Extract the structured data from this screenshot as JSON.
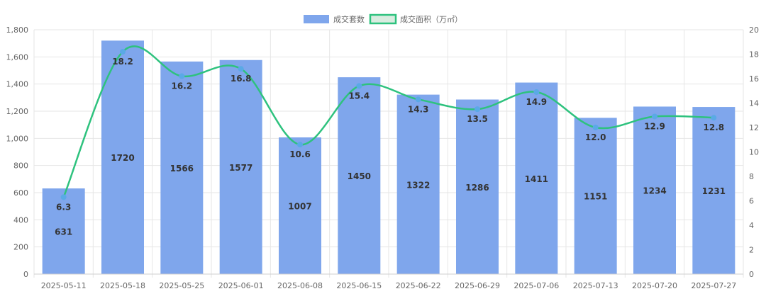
{
  "chart_data": {
    "type": "bar",
    "categories": [
      "2025-05-11",
      "2025-05-18",
      "2025-05-25",
      "2025-06-01",
      "2025-06-08",
      "2025-06-15",
      "2025-06-22",
      "2025-06-29",
      "2025-07-06",
      "2025-07-13",
      "2025-07-20",
      "2025-07-27"
    ],
    "series": [
      {
        "name": "成交套数",
        "type": "bar",
        "axis": "left",
        "values": [
          631,
          1720,
          1566,
          1577,
          1007,
          1450,
          1322,
          1286,
          1411,
          1151,
          1234,
          1231
        ],
        "color": "#7fa6ec"
      },
      {
        "name": "成交面积（万㎡）",
        "type": "line",
        "axis": "right",
        "values": [
          6.3,
          18.2,
          16.2,
          16.8,
          10.6,
          15.4,
          14.3,
          13.5,
          14.9,
          12.0,
          12.9,
          12.8
        ],
        "value_labels": [
          "6.3",
          "18.2",
          "16.2",
          "16.8",
          "10.6",
          "15.4",
          "14.3",
          "13.5",
          "14.9",
          "12.0",
          "12.9",
          "12.8"
        ],
        "color": "#2ec27e",
        "point_color": "#5aa9e6"
      }
    ],
    "y_left": {
      "min": 0,
      "max": 1800,
      "step": 200,
      "tick_labels": [
        "0",
        "200",
        "400",
        "600",
        "800",
        "1,000",
        "1,200",
        "1,400",
        "1,600",
        "1,800"
      ]
    },
    "y_right": {
      "min": 0,
      "max": 20,
      "step": 2,
      "tick_labels": [
        "0",
        "2",
        "4",
        "6",
        "8",
        "10",
        "12",
        "14",
        "16",
        "18",
        "20"
      ]
    },
    "legend": {
      "placement": "top-center",
      "bar_swatch_color": "#7fa6ec",
      "line_swatch_border": "#2ec27e",
      "line_swatch_fill": "#d9ece0"
    },
    "grid": true,
    "grid_color": "#e6e6e6"
  }
}
